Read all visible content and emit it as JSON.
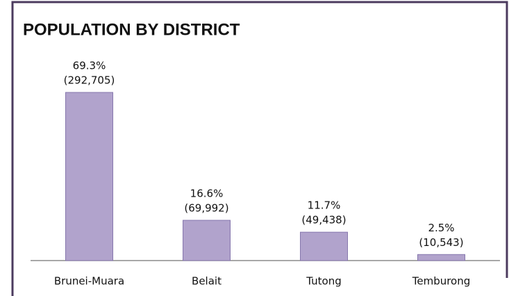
{
  "chart_data": {
    "type": "bar",
    "title": "POPULATION BY DISTRICT",
    "categories": [
      "Brunei-Muara",
      "Belait",
      "Tutong",
      "Temburong"
    ],
    "values": [
      69.3,
      16.6,
      11.7,
      2.5
    ],
    "value_labels": [
      "69.3%",
      "16.6%",
      "11.7%",
      "2.5%"
    ],
    "counts": [
      292705,
      69992,
      49438,
      10543
    ],
    "count_labels": [
      "(292,705)",
      "(69,992)",
      "(49,438)",
      "(10,543)"
    ],
    "color": "#b1a3cc"
  }
}
